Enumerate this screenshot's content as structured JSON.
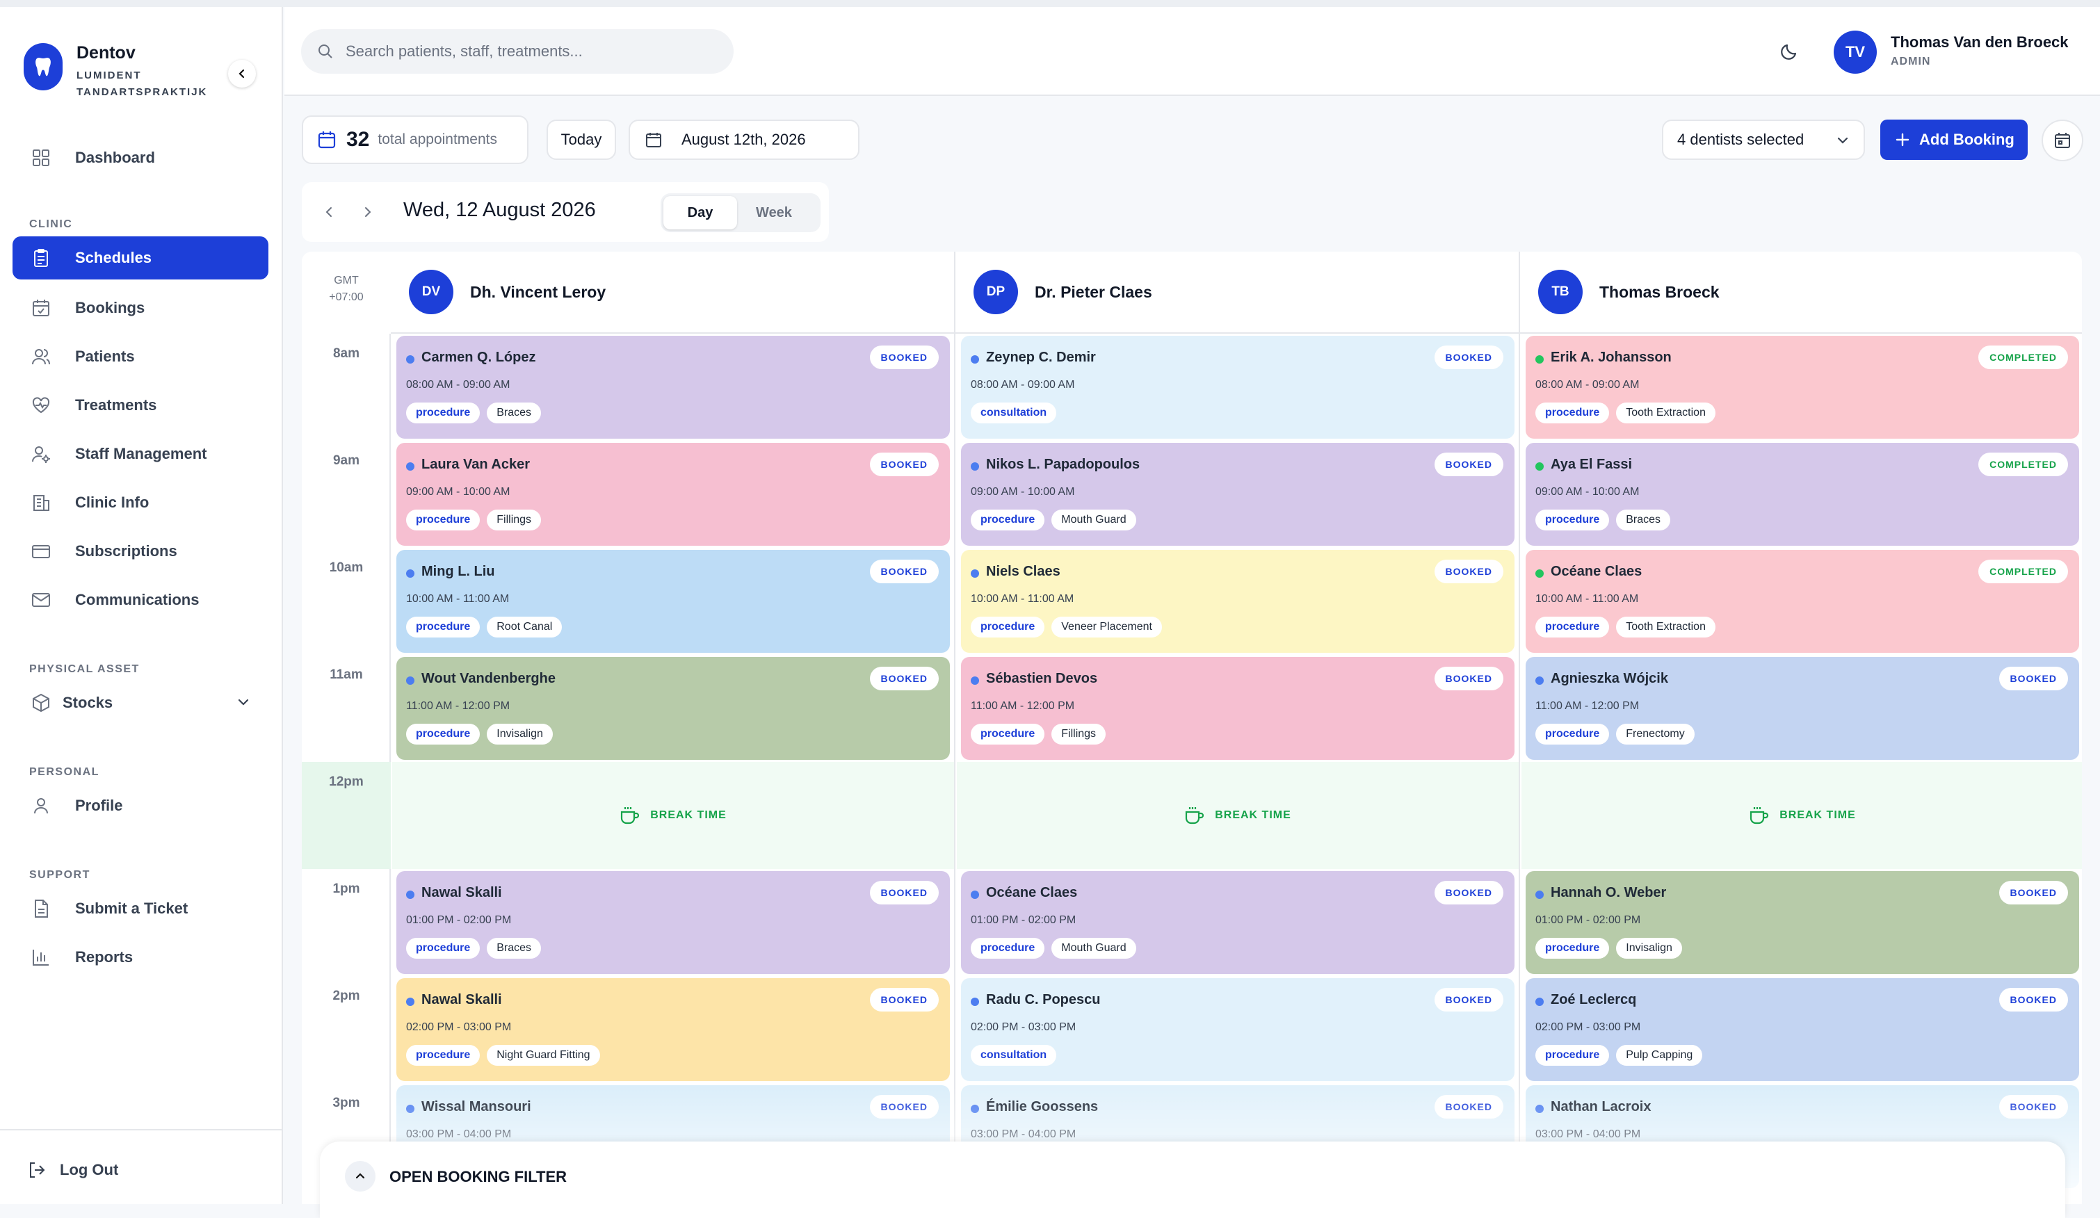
{
  "brand": {
    "name": "Dentov",
    "subtitle": "LUMIDENT TANDARTSPRAKTIJK"
  },
  "nav": {
    "dashboard": "Dashboard",
    "clinic_section": "CLINIC",
    "schedules": "Schedules",
    "bookings": "Bookings",
    "patients": "Patients",
    "treatments": "Treatments",
    "staff": "Staff Management",
    "clinic_info": "Clinic Info",
    "subscriptions": "Subscriptions",
    "communications": "Communications",
    "asset_section": "PHYSICAL ASSET",
    "stocks": "Stocks",
    "personal_section": "PERSONAL",
    "profile": "Profile",
    "support_section": "SUPPORT",
    "ticket": "Submit a Ticket",
    "reports": "Reports",
    "logout": "Log Out"
  },
  "search": {
    "placeholder": "Search patients, staff, treatments..."
  },
  "user": {
    "initials": "TV",
    "name": "Thomas Van den Broeck",
    "role": "ADMIN"
  },
  "toolbar": {
    "total": "32",
    "total_label": "total appointments",
    "today": "Today",
    "date": "August 12th, 2026",
    "dentists": "4 dentists selected",
    "add_booking": "Add Booking"
  },
  "datenav": {
    "title": "Wed, 12 August 2026",
    "day": "Day",
    "week": "Week"
  },
  "timezone": {
    "line1": "GMT",
    "line2": "+07:00"
  },
  "times": [
    "8am",
    "9am",
    "10am",
    "11am",
    "12pm",
    "1pm",
    "2pm",
    "3pm"
  ],
  "break_label": "BREAK TIME",
  "colors": {
    "accent": "#1d3fd8",
    "booked": "#1d3fd8",
    "completed": "#16a34a",
    "break": "#16a34a"
  },
  "dentists": [
    {
      "initials": "DV",
      "name": "Dh. Vincent Leroy",
      "appointments": [
        {
          "patient": "Carmen Q. López",
          "time": "08:00 AM - 09:00 AM",
          "type": "procedure",
          "treatment": "Braces",
          "status": "BOOKED",
          "bg": "#d5c8ea"
        },
        {
          "patient": "Laura Van Acker",
          "time": "09:00 AM - 10:00 AM",
          "type": "procedure",
          "treatment": "Fillings",
          "status": "BOOKED",
          "bg": "#f6bfd1"
        },
        {
          "patient": "Ming L. Liu",
          "time": "10:00 AM - 11:00 AM",
          "type": "procedure",
          "treatment": "Root Canal",
          "status": "BOOKED",
          "bg": "#bddcf6"
        },
        {
          "patient": "Wout Vandenberghe",
          "time": "11:00 AM - 12:00 PM",
          "type": "procedure",
          "treatment": "Invisalign",
          "status": "BOOKED",
          "bg": "#b7cba9"
        },
        {
          "patient": "Nawal Skalli",
          "time": "01:00 PM - 02:00 PM",
          "type": "procedure",
          "treatment": "Braces",
          "status": "BOOKED",
          "bg": "#d5c8ea"
        },
        {
          "patient": "Nawal Skalli",
          "time": "02:00 PM - 03:00 PM",
          "type": "procedure",
          "treatment": "Night Guard Fitting",
          "status": "BOOKED",
          "bg": "#fde4a8"
        },
        {
          "patient": "Wissal Mansouri",
          "time": "03:00 PM - 04:00 PM",
          "type": "procedure",
          "treatment": "",
          "status": "BOOKED",
          "bg": "#dbeefa"
        }
      ]
    },
    {
      "initials": "DP",
      "name": "Dr. Pieter Claes",
      "appointments": [
        {
          "patient": "Zeynep C. Demir",
          "time": "08:00 AM - 09:00 AM",
          "type": "consultation",
          "treatment": "",
          "status": "BOOKED",
          "bg": "#e1f1fb"
        },
        {
          "patient": "Nikos L. Papadopoulos",
          "time": "09:00 AM - 10:00 AM",
          "type": "procedure",
          "treatment": "Mouth Guard",
          "status": "BOOKED",
          "bg": "#d5c8ea"
        },
        {
          "patient": "Niels Claes",
          "time": "10:00 AM - 11:00 AM",
          "type": "procedure",
          "treatment": "Veneer Placement",
          "status": "BOOKED",
          "bg": "#fdf6c4"
        },
        {
          "patient": "Sébastien Devos",
          "time": "11:00 AM - 12:00 PM",
          "type": "procedure",
          "treatment": "Fillings",
          "status": "BOOKED",
          "bg": "#f6bfd1"
        },
        {
          "patient": "Océane Claes",
          "time": "01:00 PM - 02:00 PM",
          "type": "procedure",
          "treatment": "Mouth Guard",
          "status": "BOOKED",
          "bg": "#d5c8ea"
        },
        {
          "patient": "Radu C. Popescu",
          "time": "02:00 PM - 03:00 PM",
          "type": "consultation",
          "treatment": "",
          "status": "BOOKED",
          "bg": "#e1f1fb"
        },
        {
          "patient": "Émilie Goossens",
          "time": "03:00 PM - 04:00 PM",
          "type": "procedure",
          "treatment": "",
          "status": "BOOKED",
          "bg": "#e1f1fb"
        }
      ]
    },
    {
      "initials": "TB",
      "name": "Thomas Broeck",
      "appointments": [
        {
          "patient": "Erik A. Johansson",
          "time": "08:00 AM - 09:00 AM",
          "type": "procedure",
          "treatment": "Tooth Extraction",
          "status": "COMPLETED",
          "bg": "#fbc8cf"
        },
        {
          "patient": "Aya El Fassi",
          "time": "09:00 AM - 10:00 AM",
          "type": "procedure",
          "treatment": "Braces",
          "status": "COMPLETED",
          "bg": "#d5c8ea"
        },
        {
          "patient": "Océane Claes",
          "time": "10:00 AM - 11:00 AM",
          "type": "procedure",
          "treatment": "Tooth Extraction",
          "status": "COMPLETED",
          "bg": "#fbc8cf"
        },
        {
          "patient": "Agnieszka Wójcik",
          "time": "11:00 AM - 12:00 PM",
          "type": "procedure",
          "treatment": "Frenectomy",
          "status": "BOOKED",
          "bg": "#c3d4f2"
        },
        {
          "patient": "Hannah O. Weber",
          "time": "01:00 PM - 02:00 PM",
          "type": "procedure",
          "treatment": "Invisalign",
          "status": "BOOKED",
          "bg": "#b7cba9"
        },
        {
          "patient": "Zoé Leclercq",
          "time": "02:00 PM - 03:00 PM",
          "type": "procedure",
          "treatment": "Pulp Capping",
          "status": "BOOKED",
          "bg": "#c3d4f2"
        },
        {
          "patient": "Nathan Lacroix",
          "time": "03:00 PM - 04:00 PM",
          "type": "procedure",
          "treatment": "",
          "status": "BOOKED",
          "bg": "#dbeefa"
        }
      ]
    }
  ],
  "filter_bar": {
    "label": "OPEN BOOKING FILTER"
  }
}
